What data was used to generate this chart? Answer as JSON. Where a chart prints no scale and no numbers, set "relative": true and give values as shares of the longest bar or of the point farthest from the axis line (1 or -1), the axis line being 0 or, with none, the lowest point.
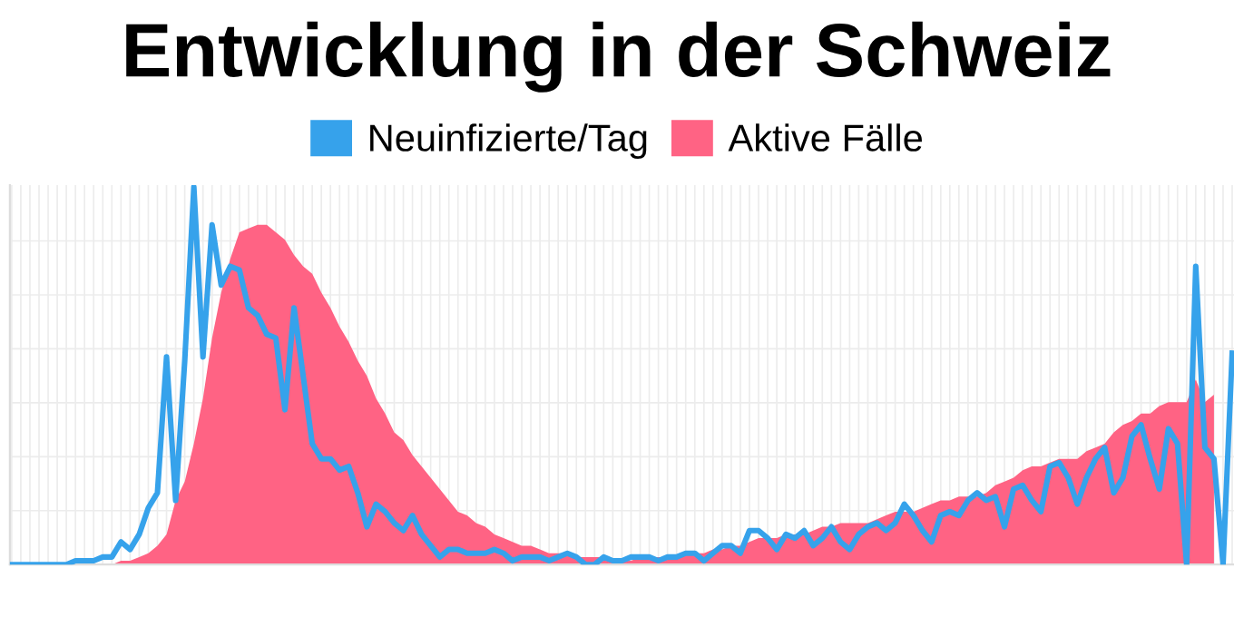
{
  "chart_data": {
    "type": "line",
    "title": "Entwicklung in der Schweiz",
    "relative": true,
    "grid": true,
    "legend": "top",
    "tick_labels": false,
    "marker": "none",
    "categories": [
      null,
      null,
      null,
      null,
      null,
      null,
      null,
      null,
      null,
      null,
      null,
      null,
      null,
      null,
      null,
      null,
      null,
      null,
      null,
      null,
      null,
      null,
      null,
      null,
      null,
      null,
      null,
      null,
      null,
      null,
      null,
      null,
      null,
      null,
      null,
      null,
      null,
      null,
      null,
      null,
      null,
      null,
      null,
      null,
      null,
      null,
      null,
      null,
      null,
      null,
      null,
      null,
      null,
      null,
      null,
      null,
      null,
      null,
      null,
      null,
      null,
      null,
      null,
      null,
      null,
      null,
      null,
      null,
      null,
      null,
      null,
      null,
      null,
      null,
      null,
      null,
      null,
      null,
      null,
      null,
      null,
      null,
      null,
      null,
      null,
      null,
      null,
      null,
      null,
      null,
      null,
      null,
      null,
      null,
      null,
      null,
      null,
      null,
      null,
      null,
      null,
      null,
      null,
      null,
      null,
      null,
      null,
      null,
      null,
      null,
      null,
      null,
      null,
      null,
      null,
      null,
      null,
      null,
      null,
      null,
      null,
      null,
      null,
      null,
      null,
      null,
      null,
      null,
      null,
      null,
      null,
      null,
      null,
      null,
      null
    ],
    "series": [
      {
        "name": "Neuinfizierte/Tag",
        "color": "#36a2eb",
        "values": [
          0,
          0,
          0,
          0,
          0,
          0,
          0,
          0.01,
          0.01,
          0.01,
          0.02,
          0.02,
          0.06,
          0.04,
          0.08,
          0.15,
          0.19,
          0.55,
          0.17,
          0.54,
          1,
          0.55,
          0.9,
          0.74,
          0.79,
          0.78,
          0.68,
          0.66,
          0.61,
          0.6,
          0.41,
          0.68,
          0.5,
          0.32,
          0.28,
          0.28,
          0.25,
          0.26,
          0.19,
          0.1,
          0.16,
          0.14,
          0.11,
          0.09,
          0.13,
          0.08,
          0.05,
          0.02,
          0.04,
          0.04,
          0.03,
          0.03,
          0.03,
          0.04,
          0.03,
          0.01,
          0.02,
          0.02,
          0.02,
          0.01,
          0.02,
          0.03,
          0.02,
          0,
          0,
          0.02,
          0.01,
          0.01,
          0.02,
          0.02,
          0.02,
          0.01,
          0.02,
          0.02,
          0.03,
          0.03,
          0.01,
          0.03,
          0.05,
          0.05,
          0.03,
          0.09,
          0.09,
          0.07,
          0.04,
          0.08,
          0.07,
          0.09,
          0.05,
          0.07,
          0.1,
          0.06,
          0.04,
          0.08,
          0.1,
          0.11,
          0.09,
          0.11,
          0.16,
          0.13,
          0.09,
          0.06,
          0.13,
          0.14,
          0.13,
          0.17,
          0.19,
          0.17,
          0.18,
          0.1,
          0.2,
          0.21,
          0.17,
          0.14,
          0.26,
          0.27,
          0.23,
          0.16,
          0.23,
          0.28,
          0.31,
          0.19,
          0.23,
          0.34,
          0.37,
          0.28,
          0.2,
          0.36,
          0.32,
          0,
          0.79,
          0.31,
          0.28,
          0,
          0.56
        ]
      },
      {
        "name": "Aktive Fälle",
        "type": "area",
        "color": "#ff6384",
        "values": [
          0,
          0,
          0,
          0,
          0,
          0,
          0,
          0,
          0,
          0,
          0,
          0,
          0.01,
          0.01,
          0.02,
          0.03,
          0.05,
          0.08,
          0.17,
          0.22,
          0.32,
          0.44,
          0.6,
          0.72,
          0.81,
          0.88,
          0.89,
          0.9,
          0.9,
          0.88,
          0.86,
          0.82,
          0.79,
          0.77,
          0.72,
          0.68,
          0.63,
          0.59,
          0.54,
          0.5,
          0.44,
          0.4,
          0.35,
          0.33,
          0.29,
          0.26,
          0.23,
          0.2,
          0.17,
          0.14,
          0.13,
          0.11,
          0.1,
          0.08,
          0.07,
          0.06,
          0.05,
          0.05,
          0.04,
          0.03,
          0.03,
          0.03,
          0.02,
          0.02,
          0.02,
          0.02,
          0.01,
          0.01,
          0.01,
          0.02,
          0.02,
          0.02,
          0.02,
          0.02,
          0.03,
          0.03,
          0.03,
          0.04,
          0.04,
          0.05,
          0.05,
          0.06,
          0.07,
          0.07,
          0.07,
          0.08,
          0.08,
          0.08,
          0.09,
          0.1,
          0.1,
          0.11,
          0.11,
          0.11,
          0.11,
          0.12,
          0.13,
          0.14,
          0.14,
          0.14,
          0.15,
          0.16,
          0.17,
          0.17,
          0.18,
          0.18,
          0.18,
          0.19,
          0.21,
          0.22,
          0.23,
          0.25,
          0.26,
          0.26,
          0.27,
          0.28,
          0.28,
          0.28,
          0.3,
          0.31,
          0.32,
          0.35,
          0.37,
          0.38,
          0.4,
          0.4,
          0.42,
          0.43,
          0.43,
          0.43,
          0.49,
          0.43,
          0.45,
          null,
          null
        ]
      }
    ]
  }
}
